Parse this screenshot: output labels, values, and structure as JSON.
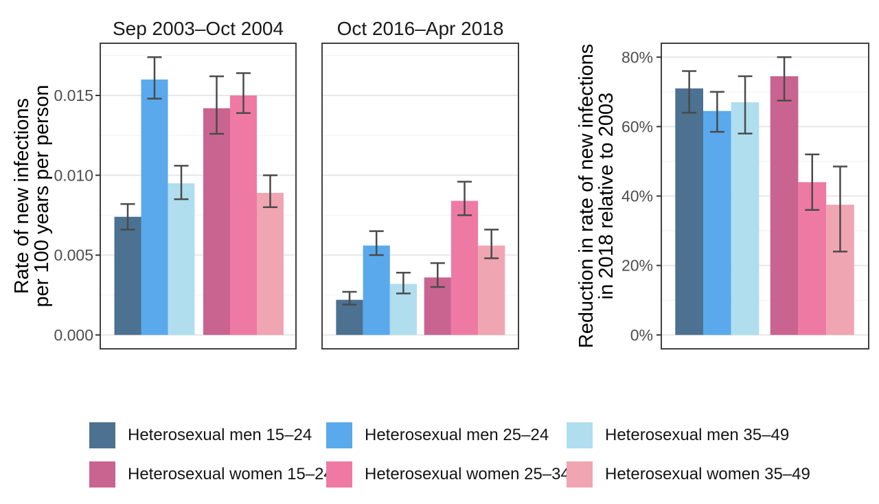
{
  "figure": {
    "bg": "#ffffff",
    "panel_border": "#404040",
    "grid_major": "#e7e7e7",
    "grid_minor": "#f4f4f4",
    "errorbar": "#4a4a4a",
    "title_color": "#1a1a1a",
    "axis_title_color": "#000000",
    "tick_label_color": "#4d4d4d",
    "legend_position": "bottom"
  },
  "groups": [
    {
      "key": "men-15-24",
      "label": "Heterosexual men 15–24",
      "color": "#4c7191"
    },
    {
      "key": "men-25-34",
      "label": "Heterosexual men 25–24",
      "color": "#5aa9ec"
    },
    {
      "key": "men-35-49",
      "label": "Heterosexual men 35–49",
      "color": "#b0deee"
    },
    {
      "key": "women-15-24",
      "label": "Heterosexual women 15–24",
      "color": "#c96490"
    },
    {
      "key": "women-25-34",
      "label": "Heterosexual women 25–34",
      "color": "#ee7aa3"
    },
    {
      "key": "women-35-49",
      "label": "Heterosexual women 35–49",
      "color": "#f0a5b2"
    }
  ],
  "chart_data": [
    {
      "type": "bar",
      "title": "Sep 2003–Oct 2004",
      "ylabel": "Rate of new infections\nper 100 years per person",
      "xlabel": "",
      "categories": [
        "Heterosexual men 15–24",
        "Heterosexual men 25–24",
        "Heterosexual men 35–49",
        "Heterosexual women 15–24",
        "Heterosexual women 25–34",
        "Heterosexual women 35–49"
      ],
      "values": [
        0.0074,
        0.016,
        0.0095,
        0.0142,
        0.015,
        0.0089
      ],
      "ci_low": [
        0.0066,
        0.0148,
        0.0085,
        0.0126,
        0.0139,
        0.008
      ],
      "ci_high": [
        0.0082,
        0.0174,
        0.0106,
        0.0162,
        0.0164,
        0.01
      ],
      "ylim": [
        0,
        0.0174
      ],
      "yticks": [
        0,
        0.005,
        0.01,
        0.015
      ],
      "ytick_labels": [
        "0.000",
        "0.005",
        "0.010",
        "0.015"
      ],
      "grid": true
    },
    {
      "type": "bar",
      "title": "Oct 2016–Apr 2018",
      "ylabel": "",
      "xlabel": "",
      "categories": [
        "Heterosexual men 15–24",
        "Heterosexual men 25–24",
        "Heterosexual men 35–49",
        "Heterosexual women 15–24",
        "Heterosexual women 25–34",
        "Heterosexual women 35–49"
      ],
      "values": [
        0.0022,
        0.0056,
        0.0032,
        0.0036,
        0.0084,
        0.0056
      ],
      "ci_low": [
        0.0019,
        0.005,
        0.0026,
        0.003,
        0.0075,
        0.0048
      ],
      "ci_high": [
        0.0027,
        0.0065,
        0.0039,
        0.0045,
        0.0096,
        0.0066
      ],
      "ylim": [
        0,
        0.0174
      ],
      "yticks": [
        0,
        0.005,
        0.01,
        0.015
      ],
      "ytick_labels": [],
      "grid": true
    },
    {
      "type": "bar",
      "title": "",
      "ylabel": "Reduction in rate of new infections\nin 2018 relative to 2003",
      "xlabel": "",
      "categories": [
        "Heterosexual men 15–24",
        "Heterosexual men 25–24",
        "Heterosexual men 35–49",
        "Heterosexual women 15–24",
        "Heterosexual women 25–34",
        "Heterosexual women 35–49"
      ],
      "values": [
        71,
        64.5,
        67,
        74.5,
        44,
        37.5
      ],
      "ci_low": [
        64,
        58.5,
        58,
        67.5,
        36,
        24
      ],
      "ci_high": [
        76,
        70,
        74.5,
        80,
        52,
        48.5
      ],
      "ylim": [
        0,
        80
      ],
      "yticks": [
        0,
        20,
        40,
        60,
        80
      ],
      "ytick_labels": [
        "0%",
        "20%",
        "40%",
        "60%",
        "80%"
      ],
      "grid": true
    }
  ]
}
